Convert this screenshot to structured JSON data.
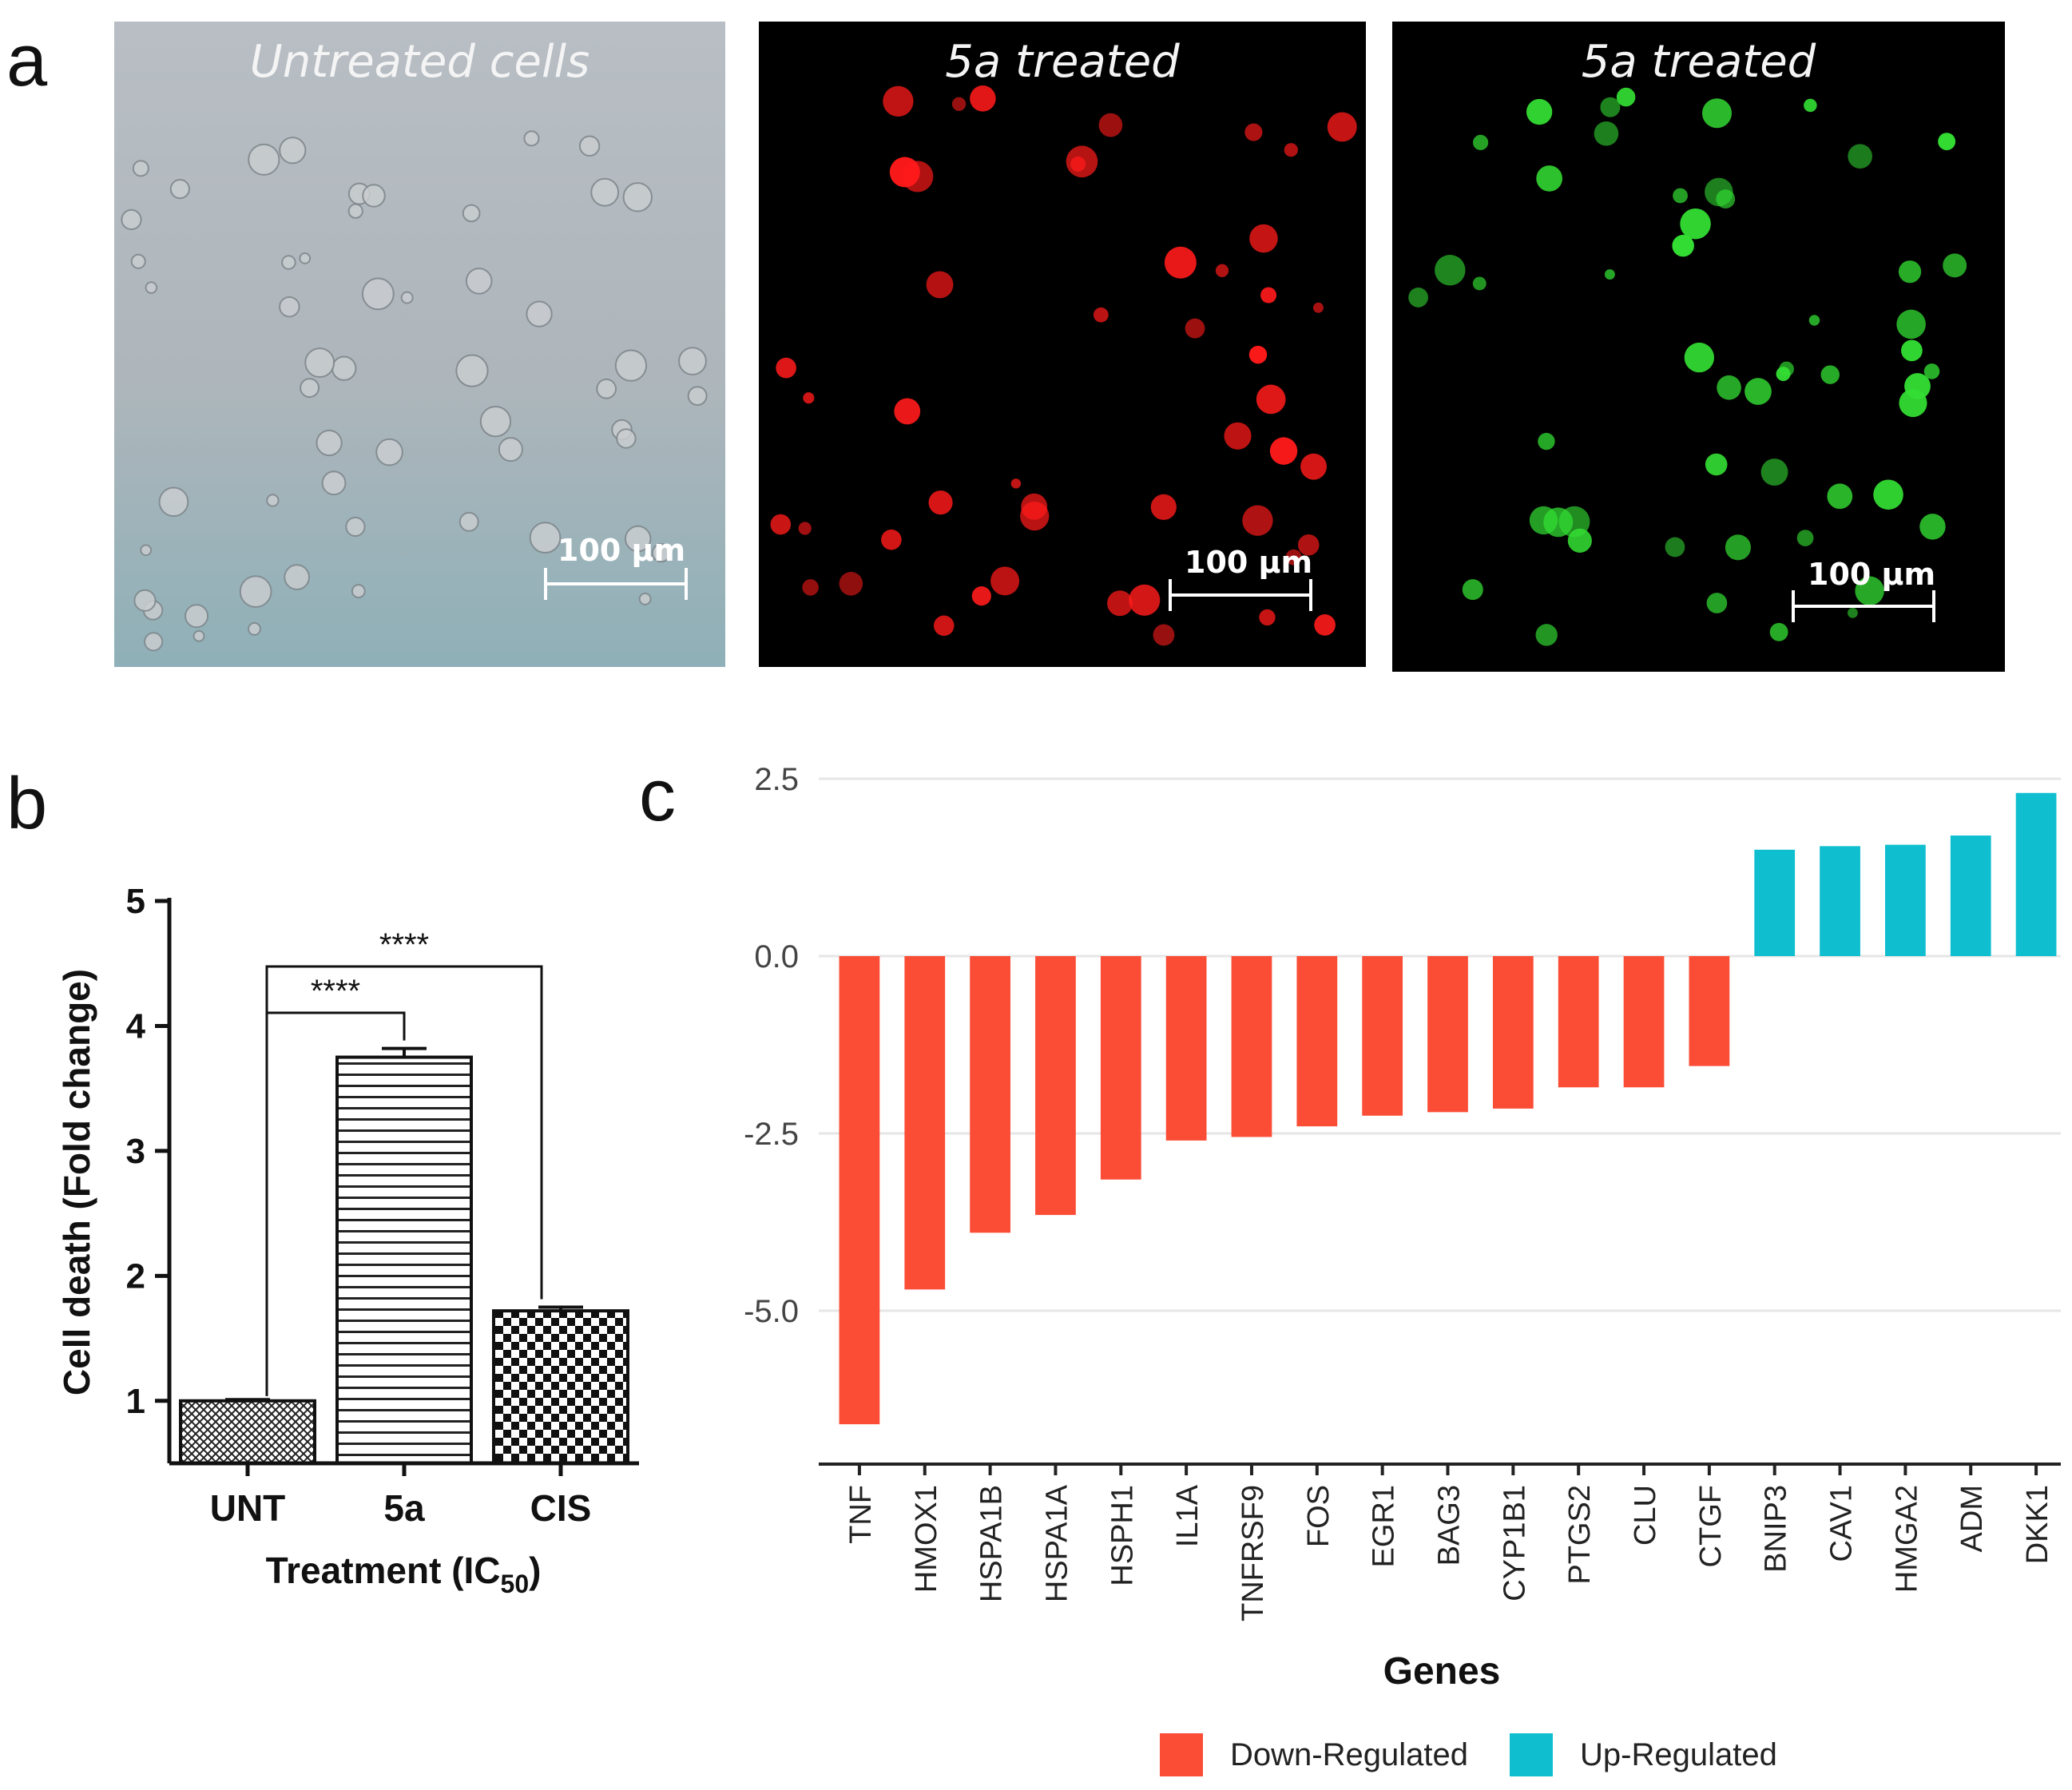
{
  "panel_a": {
    "letter": "a",
    "images": [
      {
        "title": "Untreated cells",
        "scale": "100 µm",
        "style": "bright"
      },
      {
        "title": "5a treated",
        "scale": "100 µm",
        "style": "red"
      },
      {
        "title": "5a treated",
        "scale": "100 µm",
        "style": "green"
      }
    ]
  },
  "panel_b": {
    "letter": "b"
  },
  "panel_c": {
    "letter": "c"
  },
  "colors": {
    "down": "#fb4d36",
    "up": "#0fbfd0",
    "micro_red": "#ff1a1a",
    "micro_green": "#33dd33"
  },
  "chart_data": [
    {
      "type": "bar",
      "panel": "b",
      "categories": [
        "UNT",
        "5a",
        "CIS"
      ],
      "values": [
        1.0,
        3.75,
        1.72
      ],
      "errors": [
        0.01,
        0.07,
        0.03
      ],
      "patterns": [
        "crosshatch",
        "horizontal-lines",
        "checkerboard"
      ],
      "ylabel": "Cell death (Fold change)",
      "xlabel": "Treatment (IC",
      "xlabel_sub": "50",
      "xlabel_end": ")",
      "ylim": [
        0.5,
        5
      ],
      "yticks": [
        1,
        2,
        3,
        4,
        5
      ],
      "annotations": [
        {
          "from": "UNT",
          "to": "5a",
          "label": "****"
        },
        {
          "from": "UNT",
          "to": "CIS",
          "label": "****"
        }
      ]
    },
    {
      "type": "bar",
      "panel": "c",
      "categories": [
        "TNF",
        "HMOX1",
        "HSPA1B",
        "HSPA1A",
        "HSPH1",
        "IL1A",
        "TNFRSF9",
        "FOS",
        "EGR1",
        "BAG3",
        "CYP1B1",
        "PTGS2",
        "CLU",
        "CTGF",
        "BNIP3",
        "CAV1",
        "HMGA2",
        "ADM",
        "DKK1"
      ],
      "values": [
        -6.6,
        -4.7,
        -3.9,
        -3.65,
        -3.15,
        -2.6,
        -2.55,
        -2.4,
        -2.25,
        -2.2,
        -2.15,
        -1.85,
        -1.85,
        -1.55,
        1.5,
        1.55,
        1.57,
        1.7,
        2.3
      ],
      "xlabel": "Genes",
      "yticks": [
        2.5,
        0.0,
        -2.5,
        -5.0
      ],
      "ytick_labels": [
        "2.5",
        "0.0",
        "-2.5",
        "-5.0"
      ],
      "ylim": [
        -7.1,
        2.8
      ],
      "legend": [
        "Down-Regulated",
        "Up-Regulated"
      ],
      "legend_placement": "bottom"
    }
  ]
}
